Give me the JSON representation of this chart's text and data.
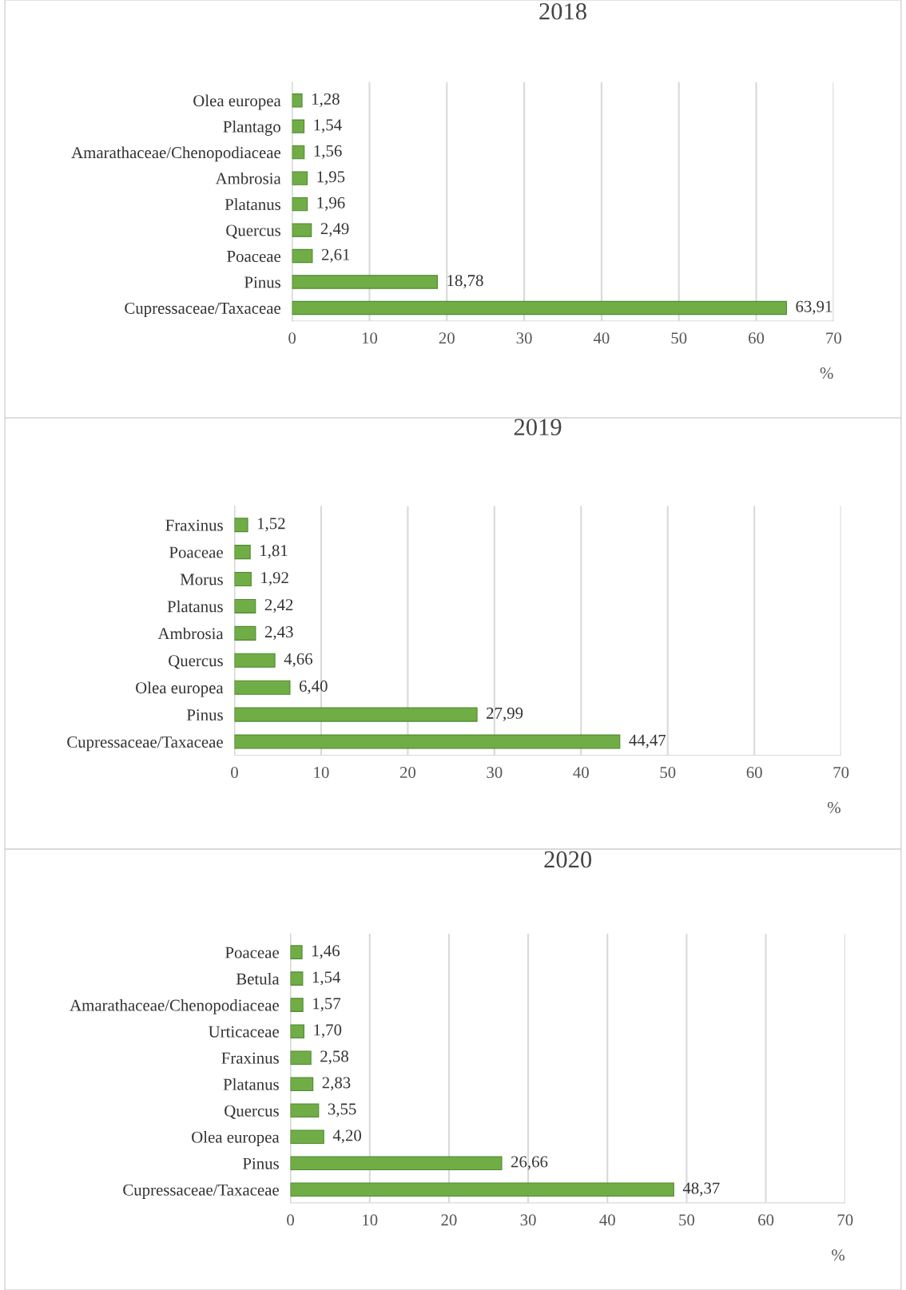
{
  "chart_data": [
    {
      "type": "bar",
      "orientation": "horizontal",
      "title": "2018",
      "xlabel": "%",
      "categories": [
        "Olea europea",
        "Plantago",
        "Amarathaceae/Chenopodiaceae",
        "Ambrosia",
        "Platanus",
        "Quercus",
        "Poaceae",
        "Pinus",
        "Cupressaceae/Taxaceae"
      ],
      "values": [
        1.28,
        1.54,
        1.56,
        1.95,
        1.96,
        2.49,
        2.61,
        18.78,
        63.91
      ],
      "value_labels": [
        "1,28",
        "1,54",
        "1,56",
        "1,95",
        "1,96",
        "2,49",
        "2,61",
        "18,78",
        "63,91"
      ],
      "color": "#70ad47",
      "xlim": [
        0,
        70
      ],
      "xticks": [
        0,
        10,
        20,
        30,
        40,
        50,
        60,
        70
      ],
      "grid": "x"
    },
    {
      "type": "bar",
      "orientation": "horizontal",
      "title": "2019",
      "xlabel": "%",
      "categories": [
        "Fraxinus",
        "Poaceae",
        "Morus",
        "Platanus",
        "Ambrosia",
        "Quercus",
        "Olea europea",
        "Pinus",
        "Cupressaceae/Taxaceae"
      ],
      "values": [
        1.52,
        1.81,
        1.92,
        2.42,
        2.43,
        4.66,
        6.4,
        27.99,
        44.47
      ],
      "value_labels": [
        "1,52",
        "1,81",
        "1,92",
        "2,42",
        "2,43",
        "4,66",
        "6,40",
        "27,99",
        "44,47"
      ],
      "color": "#70ad47",
      "xlim": [
        0,
        70
      ],
      "xticks": [
        0,
        10,
        20,
        30,
        40,
        50,
        60,
        70
      ],
      "grid": "x"
    },
    {
      "type": "bar",
      "orientation": "horizontal",
      "title": "2020",
      "xlabel": "%",
      "categories": [
        "Poaceae",
        "Betula",
        "Amarathaceae/Chenopodiaceae",
        "Urticaceae",
        "Fraxinus",
        "Platanus",
        "Quercus",
        "Olea europea",
        "Pinus",
        "Cupressaceae/Taxaceae"
      ],
      "values": [
        1.46,
        1.54,
        1.57,
        1.7,
        2.58,
        2.83,
        3.55,
        4.2,
        26.66,
        48.37
      ],
      "value_labels": [
        "1,46",
        "1,54",
        "1,57",
        "1,70",
        "2,58",
        "2,83",
        "3,55",
        "4,20",
        "26,66",
        "48,37"
      ],
      "color": "#70ad47",
      "xlim": [
        0,
        70
      ],
      "xticks": [
        0,
        10,
        20,
        30,
        40,
        50,
        60,
        70
      ],
      "grid": "x"
    }
  ]
}
